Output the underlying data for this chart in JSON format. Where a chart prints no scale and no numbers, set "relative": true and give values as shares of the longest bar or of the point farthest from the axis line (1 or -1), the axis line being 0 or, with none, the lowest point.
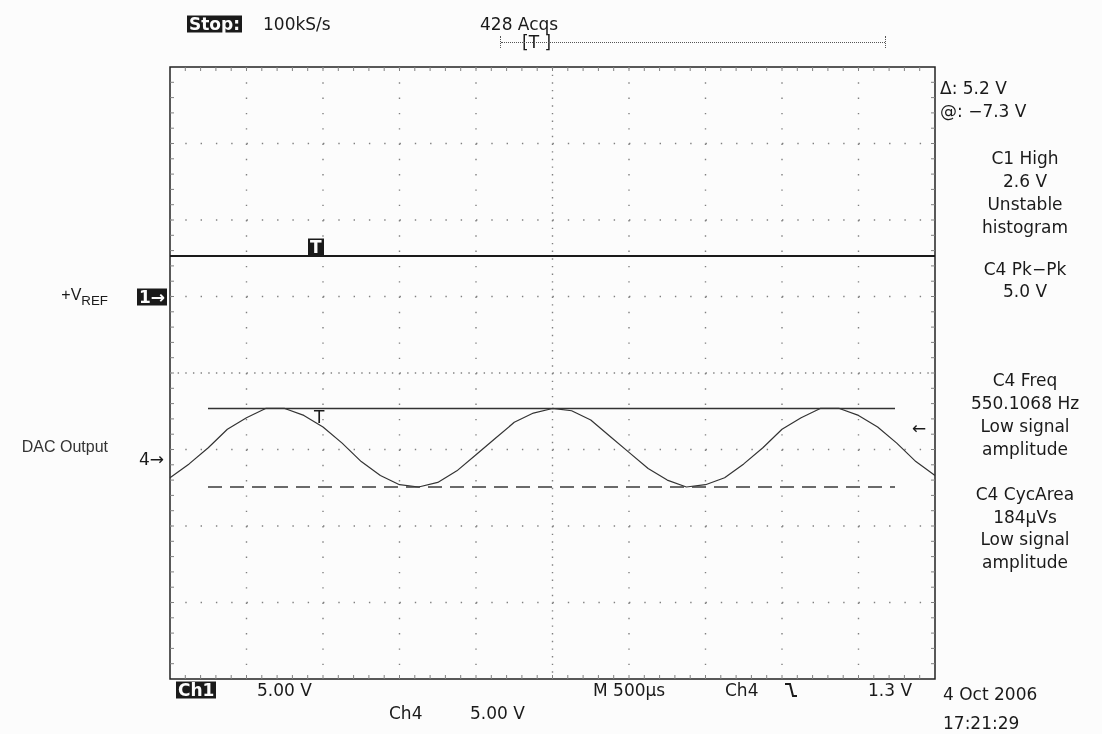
{
  "chart_data": {
    "type": "line",
    "relative": true,
    "grid": true,
    "legend": "left",
    "tick_labels": false,
    "marker": "none",
    "categories": [
      null,
      null,
      null,
      null,
      null,
      null,
      null,
      null,
      null,
      null,
      null,
      null,
      null,
      null,
      null,
      null,
      null,
      null,
      null,
      null,
      null,
      null,
      null,
      null,
      null,
      null,
      null,
      null,
      null,
      null,
      null,
      null,
      null,
      null,
      null,
      null,
      null,
      null,
      null,
      null,
      null
    ],
    "series": [
      {
        "name": "+V$_{REF}$",
        "color": "#1a1a1a",
        "values": [
          1,
          1,
          1,
          1,
          1,
          1,
          1,
          1,
          1,
          1,
          1,
          1,
          1,
          1,
          1,
          1,
          1,
          1,
          1,
          1,
          1,
          1,
          1,
          1,
          1,
          1,
          1,
          1,
          1,
          1,
          1,
          1,
          1,
          1,
          1,
          1,
          1,
          1,
          1,
          1,
          1
        ]
      },
      {
        "name": "DAC Output",
        "color": "#333333",
        "values": [
          0.04,
          0.1,
          0.17,
          0.25,
          0.3,
          0.34,
          0.34,
          0.31,
          0.26,
          0.19,
          0.11,
          0.05,
          0.01,
          0,
          0.02,
          0.07,
          0.14,
          0.21,
          0.28,
          0.32,
          0.34,
          0.33,
          0.29,
          0.22,
          0.15,
          0.08,
          0.03,
          0,
          0.01,
          0.04,
          0.1,
          0.17,
          0.25,
          0.3,
          0.34,
          0.34,
          0.31,
          0.26,
          0.19,
          0.11,
          0.05
        ]
      }
    ],
    "ref_lines": [
      {
        "axis": "y",
        "value": 0.34,
        "color": "#333333",
        "line_style": "solid"
      },
      {
        "axis": "y",
        "value": 0,
        "color": "#3a3a3a",
        "line_style": "dashed"
      }
    ],
    "annotations": [
      "Stop:",
      "100kS/s",
      "428 Acqs",
      "[T ]",
      "Δ: 5.2 V",
      "@: −7.3 V",
      "C1 High\n2.6 V\nUnstable\nhistogram",
      "C4 Pk−Pk\n5.0 V",
      "C4 Freq\n550.1068 Hz\nLow signal\namplitude",
      "C4 CycArea\n184µVs\nLow signal\namplitude",
      "Ch1",
      "5.00 V",
      "Ch4",
      "5.00 V",
      "M 500µs",
      "Ch4",
      "1.3 V",
      "4 Oct 2006",
      "17:21:29",
      "T",
      "T",
      "1→",
      "4→",
      "←"
    ]
  }
}
